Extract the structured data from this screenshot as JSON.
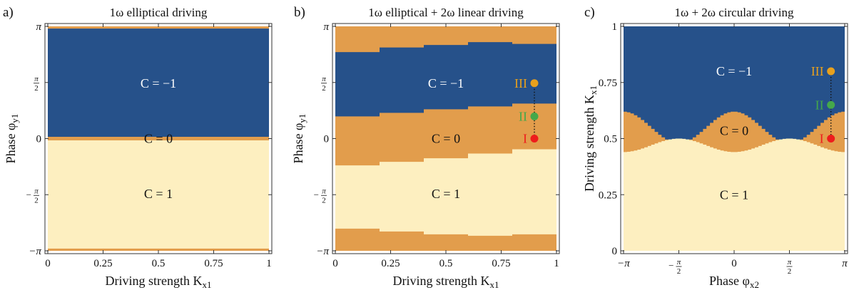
{
  "colors": {
    "chern_minus1": "#26518a",
    "chern_0": "#e29d4c",
    "chern_1": "#fdefc0",
    "point_I": "#ee1c1c",
    "point_II": "#45a84a",
    "point_III": "#e8a01d",
    "text_dark": "#111111",
    "text_light": "#ffffff"
  },
  "chart_data": [
    {
      "panel_label": "a)",
      "title": "1ω elliptical driving",
      "type": "heatmap",
      "xlabel": "Driving strength K",
      "xlabel_sub": "x1",
      "ylabel": "Phase φ",
      "ylabel_sub": "y1",
      "xlim": [
        0,
        1
      ],
      "ylim": [
        -3.1416,
        3.1416
      ],
      "x_ticks": [
        {
          "v": 0,
          "label": "0"
        },
        {
          "v": 0.25,
          "label": "0.25"
        },
        {
          "v": 0.5,
          "label": "0.5"
        },
        {
          "v": 0.75,
          "label": "0.75"
        },
        {
          "v": 1,
          "label": "1"
        }
      ],
      "y_ticks": [
        {
          "v": 3.1416,
          "label": "π",
          "kind": "pi"
        },
        {
          "v": 1.5708,
          "label": "π/2",
          "kind": "frac",
          "num": "π",
          "den": "2"
        },
        {
          "v": 0,
          "label": "0",
          "kind": "plain"
        },
        {
          "v": -1.5708,
          "label": "−π/2",
          "kind": "frac",
          "num": "π",
          "den": "2",
          "neg": "−"
        },
        {
          "v": -3.1416,
          "label": "−π",
          "kind": "pi"
        }
      ],
      "region_labels": [
        {
          "text": "C = −1",
          "x": 0.5,
          "y": 1.55,
          "tone": "light"
        },
        {
          "text": "C = 0",
          "x": 0.5,
          "y": 0.0,
          "tone": "dark"
        },
        {
          "text": "C = 1",
          "x": 0.5,
          "y": -1.55,
          "tone": "dark"
        }
      ],
      "boundaries": {
        "x": [
          0,
          1
        ],
        "upper_m1": [
          3.08,
          3.08
        ],
        "lower_m1": [
          0.05,
          0.05
        ],
        "upper_c1": [
          -0.05,
          -0.05
        ],
        "lower_c1": [
          -3.08,
          -3.08
        ]
      },
      "points": []
    },
    {
      "panel_label": "b)",
      "title": "1ω elliptical + 2ω linear driving",
      "type": "heatmap",
      "xlabel": "Driving strength K",
      "xlabel_sub": "x1",
      "ylabel": "Phase φ",
      "ylabel_sub": "y1",
      "xlim": [
        0,
        1
      ],
      "ylim": [
        -3.1416,
        3.1416
      ],
      "x_ticks": [
        {
          "v": 0,
          "label": "0"
        },
        {
          "v": 0.25,
          "label": "0.25"
        },
        {
          "v": 0.5,
          "label": "0.5"
        },
        {
          "v": 0.75,
          "label": "0.75"
        },
        {
          "v": 1,
          "label": "1"
        }
      ],
      "y_ticks": [
        {
          "v": 3.1416,
          "label": "π",
          "kind": "pi"
        },
        {
          "v": 1.5708,
          "label": "π/2",
          "kind": "frac",
          "num": "π",
          "den": "2"
        },
        {
          "v": 0,
          "label": "0",
          "kind": "plain"
        },
        {
          "v": -1.5708,
          "label": "−π/2",
          "kind": "frac",
          "num": "π",
          "den": "2",
          "neg": "−"
        },
        {
          "v": -3.1416,
          "label": "−π",
          "kind": "pi"
        }
      ],
      "region_labels": [
        {
          "text": "C = −1",
          "x": 0.5,
          "y": 1.55,
          "tone": "light"
        },
        {
          "text": "C = 0",
          "x": 0.5,
          "y": 0.0,
          "tone": "dark"
        },
        {
          "text": "C = 1",
          "x": 0.5,
          "y": -1.55,
          "tone": "dark"
        }
      ],
      "boundaries": {
        "x": [
          0,
          0.2,
          0.2,
          0.4,
          0.4,
          0.6,
          0.6,
          0.8,
          0.8,
          1.0
        ],
        "upper_m1": [
          2.42,
          2.42,
          2.55,
          2.55,
          2.62,
          2.62,
          2.7,
          2.7,
          2.65,
          2.65
        ],
        "lower_m1": [
          0.62,
          0.62,
          0.72,
          0.72,
          0.82,
          0.82,
          0.9,
          0.9,
          0.98,
          0.98
        ],
        "upper_c1": [
          -0.75,
          -0.75,
          -0.65,
          -0.65,
          -0.55,
          -0.55,
          -0.42,
          -0.42,
          -0.3,
          -0.3
        ],
        "lower_c1": [
          -2.52,
          -2.52,
          -2.6,
          -2.6,
          -2.68,
          -2.68,
          -2.72,
          -2.72,
          -2.68,
          -2.68
        ]
      },
      "points": [
        {
          "label": "III",
          "x": 0.9,
          "y": 1.55,
          "color_key": "point_III"
        },
        {
          "label": "II",
          "x": 0.9,
          "y": 0.62,
          "color_key": "point_II"
        },
        {
          "label": "I",
          "x": 0.9,
          "y": 0.0,
          "color_key": "point_I"
        }
      ]
    },
    {
      "panel_label": "c)",
      "title": "1ω + 2ω circular driving",
      "type": "heatmap",
      "xlabel": "Phase φ",
      "xlabel_sub": "x2",
      "ylabel": "Driving strength K",
      "ylabel_sub": "x1",
      "xlim": [
        -3.1416,
        3.1416
      ],
      "ylim": [
        0,
        1
      ],
      "x_ticks": [
        {
          "v": -3.1416,
          "label": "−π",
          "kind": "pi"
        },
        {
          "v": -1.5708,
          "label": "−π/2",
          "kind": "frac",
          "num": "π",
          "den": "2",
          "neg": "−"
        },
        {
          "v": 0,
          "label": "0",
          "kind": "plain"
        },
        {
          "v": 1.5708,
          "label": "π/2",
          "kind": "frac",
          "num": "π",
          "den": "2"
        },
        {
          "v": 3.1416,
          "label": "π",
          "kind": "pi"
        }
      ],
      "y_ticks": [
        {
          "v": 0,
          "label": "0"
        },
        {
          "v": 0.25,
          "label": "0.25"
        },
        {
          "v": 0.5,
          "label": "0.5"
        },
        {
          "v": 0.75,
          "label": "0.75"
        },
        {
          "v": 1,
          "label": "1"
        }
      ],
      "region_labels": [
        {
          "text": "C = −1",
          "x": 0.0,
          "y": 0.8,
          "tone": "light"
        },
        {
          "text": "C = 0",
          "x": 0.0,
          "y": 0.535,
          "tone": "dark"
        },
        {
          "text": "C = 1",
          "x": 0.0,
          "y": 0.25,
          "tone": "dark"
        }
      ],
      "boundary_curves": {
        "upper_formula": "0.55 + 0.07*cos(2*phi)",
        "lower_formula": "0.47 - 0.03*cos(2*phi)",
        "step_count": 64
      },
      "points": [
        {
          "label": "III",
          "x": 2.75,
          "y": 0.8,
          "color_key": "point_III"
        },
        {
          "label": "II",
          "x": 2.75,
          "y": 0.65,
          "color_key": "point_II"
        },
        {
          "label": "I",
          "x": 2.75,
          "y": 0.5,
          "color_key": "point_I"
        }
      ]
    }
  ]
}
